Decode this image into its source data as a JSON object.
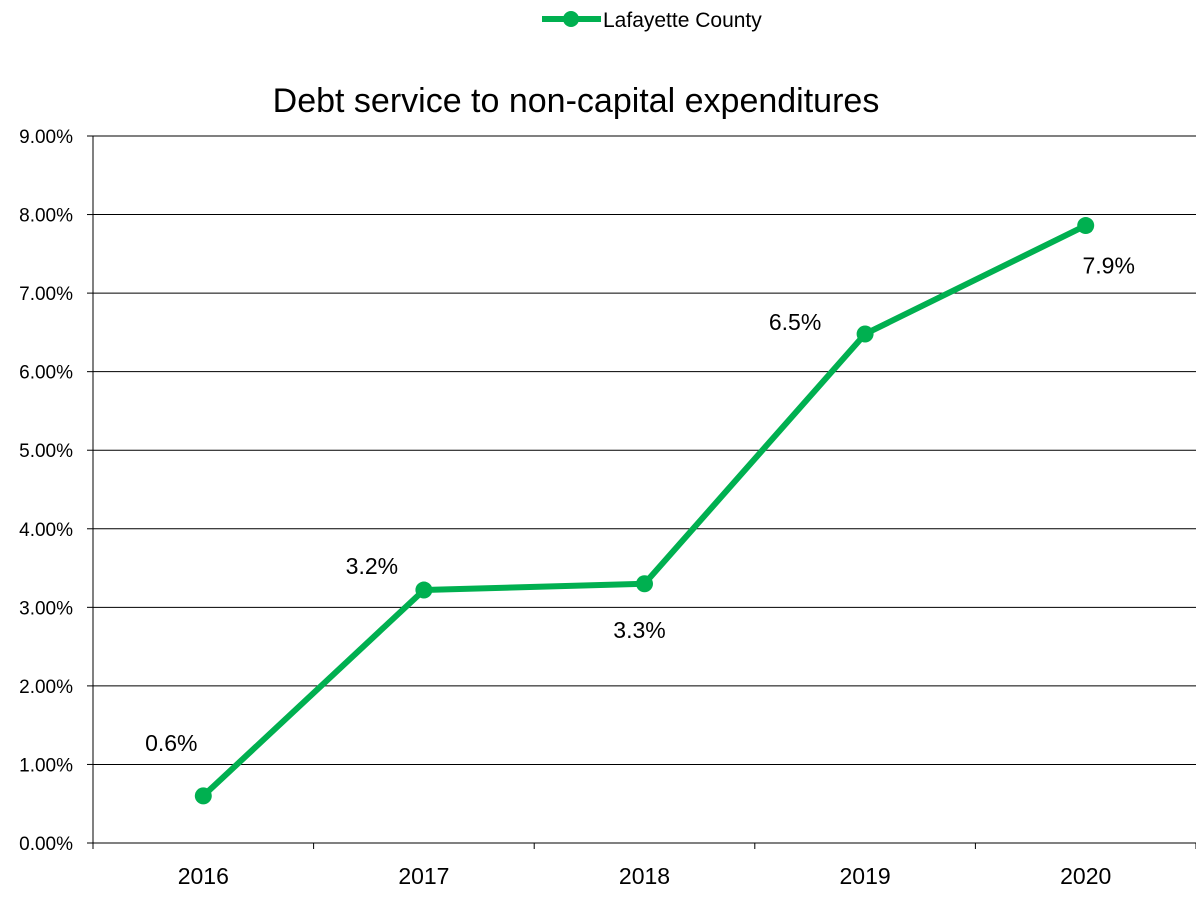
{
  "chart_data": {
    "type": "line",
    "title": "Debt service to non-capital expenditures",
    "xlabel": "",
    "ylabel": "",
    "categories": [
      "2016",
      "2017",
      "2018",
      "2019",
      "2020"
    ],
    "series": [
      {
        "name": "Lafayette County",
        "values": [
          0.006,
          0.0322,
          0.033,
          0.0648,
          0.0786
        ],
        "data_labels": [
          "0.6%",
          "3.2%",
          "3.3%",
          "6.5%",
          "7.9%"
        ],
        "color": "#00b050"
      }
    ],
    "ylim": [
      0,
      0.09
    ],
    "y_ticks": [
      0,
      0.01,
      0.02,
      0.03,
      0.04,
      0.05,
      0.06,
      0.07,
      0.08,
      0.09
    ],
    "y_tick_labels": [
      "0.00%",
      "1.00%",
      "2.00%",
      "3.00%",
      "4.00%",
      "5.00%",
      "6.00%",
      "7.00%",
      "8.00%",
      "9.00%"
    ],
    "grid": true,
    "legend_position": "top-center"
  }
}
